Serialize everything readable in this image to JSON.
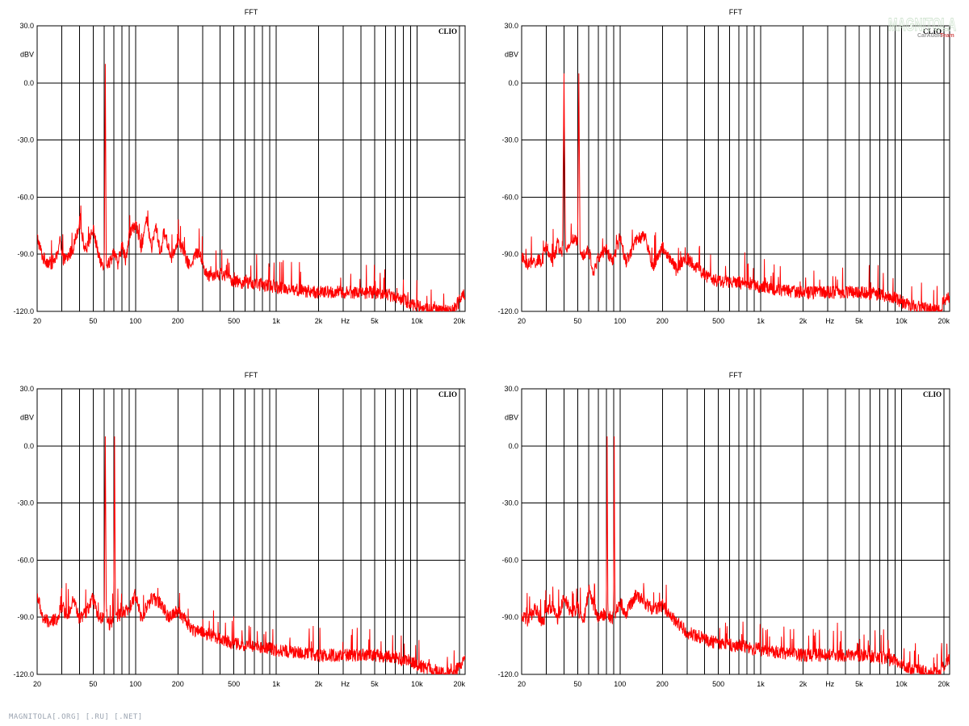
{
  "footer": "MAGNITOLA[.ORG] [.RU] [.NET]",
  "watermark": {
    "text": "MAGNITOLA",
    "sub1": "CarAudio",
    "sub2": "Team"
  },
  "colors": {
    "trace": "#ff0000",
    "grid": "#000000",
    "text": "#000000",
    "background": "#ffffff"
  },
  "chart_data": [
    {
      "type": "line",
      "title": "FFT",
      "brand": "CLIO",
      "ylabel": "dBV",
      "xunit": "Hz",
      "xscale": "log",
      "xlim": [
        20,
        22000
      ],
      "ylim": [
        -120,
        30
      ],
      "yticks": [
        30,
        0,
        -30,
        -60,
        -90,
        -120
      ],
      "ytick_labels": [
        "30.0",
        "0.0",
        "-30.0",
        "-60.0",
        "-90.0",
        "-120.0"
      ],
      "xtick_labels": [
        {
          "v": 20,
          "t": "20"
        },
        {
          "v": 50,
          "t": "50"
        },
        {
          "v": 100,
          "t": "100"
        },
        {
          "v": 200,
          "t": "200"
        },
        {
          "v": 500,
          "t": "500"
        },
        {
          "v": 1000,
          "t": "1k"
        },
        {
          "v": 2000,
          "t": "2k"
        },
        {
          "v": 5000,
          "t": "5k"
        },
        {
          "v": 10000,
          "t": "10k"
        },
        {
          "v": 20000,
          "t": "20k"
        }
      ],
      "grid": true,
      "series": [
        {
          "x": [
            20,
            22,
            25,
            28,
            29,
            30,
            32,
            36,
            40,
            44,
            50,
            56,
            60,
            61,
            62,
            66,
            70,
            75,
            80,
            85,
            90,
            100,
            110,
            120,
            130,
            140,
            150,
            160,
            180,
            200,
            240,
            280,
            320,
            400,
            500,
            600,
            800,
            1000,
            1500,
            2000,
            3000,
            4000,
            5000,
            6000,
            7000,
            8000,
            9000,
            10000,
            12000,
            15000,
            18000,
            19000,
            20000,
            21000,
            22000
          ],
          "y": [
            -81,
            -92,
            -95,
            -91,
            -79,
            -92,
            -93,
            -87,
            -73,
            -88,
            -77,
            -94,
            -95,
            10,
            -95,
            -94,
            -88,
            -96,
            -85,
            -93,
            -80,
            -74,
            -86,
            -72,
            -87,
            -75,
            -90,
            -78,
            -92,
            -82,
            -96,
            -88,
            -101,
            -100,
            -104,
            -105,
            -106,
            -107,
            -109,
            -110,
            -110,
            -110,
            -110,
            -111,
            -112,
            -114,
            -116,
            -117,
            -119,
            -120,
            -120,
            -117,
            -114,
            -110,
            -111
          ]
        }
      ]
    },
    {
      "type": "line",
      "title": "FFT",
      "brand": "CLIO",
      "ylabel": "dBV",
      "xunit": "Hz",
      "xscale": "log",
      "xlim": [
        20,
        22000
      ],
      "ylim": [
        -120,
        30
      ],
      "yticks": [
        30,
        0,
        -30,
        -60,
        -90,
        -120
      ],
      "ytick_labels": [
        "30.0",
        "0.0",
        "-30.0",
        "-60.0",
        "-90.0",
        "-120.0"
      ],
      "xtick_labels": [
        {
          "v": 20,
          "t": "20"
        },
        {
          "v": 50,
          "t": "50"
        },
        {
          "v": 100,
          "t": "100"
        },
        {
          "v": 200,
          "t": "200"
        },
        {
          "v": 500,
          "t": "500"
        },
        {
          "v": 1000,
          "t": "1k"
        },
        {
          "v": 2000,
          "t": "2k"
        },
        {
          "v": 5000,
          "t": "5k"
        },
        {
          "v": 10000,
          "t": "10k"
        },
        {
          "v": 20000,
          "t": "20k"
        }
      ],
      "grid": true,
      "series": [
        {
          "x": [
            20,
            22,
            25,
            28,
            30,
            33,
            36,
            39,
            40,
            41,
            45,
            50,
            51,
            52,
            55,
            60,
            65,
            70,
            80,
            90,
            100,
            110,
            130,
            150,
            170,
            200,
            250,
            300,
            400,
            500,
            700,
            1000,
            1500,
            2000,
            3000,
            4000,
            5000,
            7000,
            9000,
            10000,
            12000,
            15000,
            18000,
            19000,
            20000,
            21000,
            22000
          ],
          "y": [
            -92,
            -95,
            -94,
            -93,
            -86,
            -95,
            -84,
            -92,
            5,
            -90,
            -82,
            -84,
            5,
            -86,
            -90,
            -88,
            -100,
            -92,
            -88,
            -94,
            -80,
            -94,
            -83,
            -80,
            -97,
            -86,
            -98,
            -92,
            -101,
            -104,
            -105,
            -107,
            -109,
            -110,
            -110,
            -110,
            -110,
            -111,
            -113,
            -115,
            -117,
            -119,
            -120,
            -118,
            -115,
            -113,
            -112
          ]
        }
      ]
    },
    {
      "type": "line",
      "title": "FFT",
      "brand": "CLIO",
      "ylabel": "dBV",
      "xunit": "Hz",
      "xscale": "log",
      "xlim": [
        20,
        22000
      ],
      "ylim": [
        -120,
        30
      ],
      "yticks": [
        30,
        0,
        -30,
        -60,
        -90,
        -120
      ],
      "ytick_labels": [
        "30.0",
        "0.0",
        "-30.0",
        "-60.0",
        "-90.0",
        "-120.0"
      ],
      "xtick_labels": [
        {
          "v": 20,
          "t": "20"
        },
        {
          "v": 50,
          "t": "50"
        },
        {
          "v": 100,
          "t": "100"
        },
        {
          "v": 200,
          "t": "200"
        },
        {
          "v": 500,
          "t": "500"
        },
        {
          "v": 1000,
          "t": "1k"
        },
        {
          "v": 2000,
          "t": "2k"
        },
        {
          "v": 5000,
          "t": "5k"
        },
        {
          "v": 10000,
          "t": "10k"
        },
        {
          "v": 20000,
          "t": "20k"
        }
      ],
      "grid": true,
      "series": [
        {
          "x": [
            20,
            22,
            25,
            28,
            30,
            33,
            36,
            40,
            45,
            50,
            55,
            60,
            61,
            62,
            66,
            70,
            71,
            72,
            80,
            90,
            100,
            110,
            130,
            150,
            170,
            200,
            250,
            300,
            400,
            500,
            700,
            1000,
            1500,
            2000,
            3000,
            4000,
            5000,
            7000,
            9000,
            10000,
            12000,
            15000,
            18000,
            19000,
            20000,
            21000,
            22000
          ],
          "y": [
            -78,
            -91,
            -93,
            -90,
            -84,
            -90,
            -80,
            -91,
            -87,
            -80,
            -92,
            -88,
            5,
            -88,
            -95,
            -90,
            5,
            -90,
            -88,
            -86,
            -78,
            -90,
            -80,
            -82,
            -90,
            -86,
            -96,
            -98,
            -101,
            -104,
            -105,
            -107,
            -109,
            -110,
            -110,
            -110,
            -110,
            -111,
            -113,
            -115,
            -117,
            -119,
            -120,
            -118,
            -115,
            -113,
            -112
          ]
        }
      ]
    },
    {
      "type": "line",
      "title": "FFT",
      "brand": "CLIO",
      "ylabel": "dBV",
      "xunit": "Hz",
      "xscale": "log",
      "xlim": [
        20,
        22000
      ],
      "ylim": [
        -120,
        30
      ],
      "yticks": [
        30,
        0,
        -30,
        -60,
        -90,
        -120
      ],
      "ytick_labels": [
        "30.0",
        "0.0",
        "-30.0",
        "-60.0",
        "-90.0",
        "-120.0"
      ],
      "xtick_labels": [
        {
          "v": 20,
          "t": "20"
        },
        {
          "v": 50,
          "t": "50"
        },
        {
          "v": 100,
          "t": "100"
        },
        {
          "v": 200,
          "t": "200"
        },
        {
          "v": 500,
          "t": "500"
        },
        {
          "v": 1000,
          "t": "1k"
        },
        {
          "v": 2000,
          "t": "2k"
        },
        {
          "v": 5000,
          "t": "5k"
        },
        {
          "v": 10000,
          "t": "10k"
        },
        {
          "v": 20000,
          "t": "20k"
        }
      ],
      "grid": true,
      "series": [
        {
          "x": [
            20,
            22,
            25,
            28,
            30,
            33,
            36,
            40,
            45,
            50,
            55,
            60,
            70,
            80,
            81,
            82,
            88,
            90,
            91,
            92,
            100,
            110,
            130,
            150,
            170,
            200,
            250,
            300,
            400,
            500,
            700,
            1000,
            1500,
            2000,
            3000,
            4000,
            5000,
            7000,
            9000,
            10000,
            12000,
            15000,
            18000,
            19000,
            20000,
            21000,
            22000
          ],
          "y": [
            -90,
            -92,
            -85,
            -93,
            -88,
            -84,
            -91,
            -79,
            -88,
            -85,
            -93,
            -76,
            -90,
            -88,
            5,
            -88,
            -92,
            -88,
            5,
            -88,
            -82,
            -88,
            -78,
            -82,
            -86,
            -84,
            -92,
            -98,
            -101,
            -104,
            -105,
            -107,
            -109,
            -110,
            -110,
            -110,
            -110,
            -111,
            -113,
            -115,
            -117,
            -119,
            -120,
            -118,
            -115,
            -113,
            -112
          ]
        }
      ]
    }
  ]
}
